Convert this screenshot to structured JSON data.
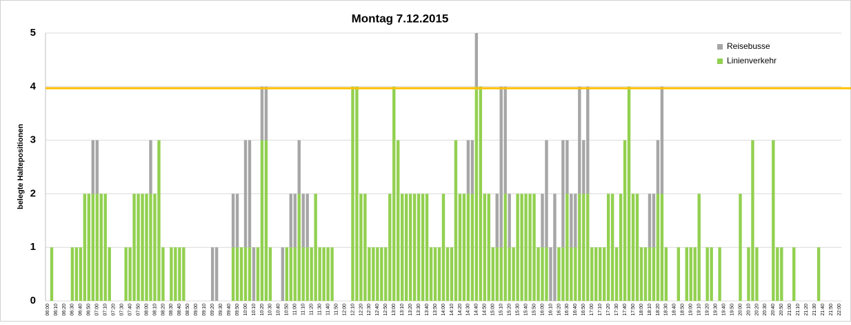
{
  "chart_data": {
    "type": "bar",
    "stacked": true,
    "title": "Montag 7.12.2015",
    "y_label": "belegte Haltepositionen",
    "categories": [
      "06:00",
      null,
      "06:10",
      null,
      "06:20",
      null,
      "06:30",
      null,
      "06:40",
      null,
      "06:50",
      null,
      "07:00",
      null,
      "07:10",
      null,
      "07:20",
      null,
      "07:30",
      null,
      "07:40",
      null,
      "07:50",
      null,
      "08:00",
      null,
      "08:10",
      null,
      "08:20",
      null,
      "08:30",
      null,
      "08:40",
      null,
      "08:50",
      null,
      "09:00",
      null,
      "09:10",
      null,
      "09:20",
      null,
      "09:30",
      null,
      "09:40",
      null,
      "09:50",
      null,
      "10:00",
      null,
      "10:10",
      null,
      "10:20",
      null,
      "10:30",
      null,
      "10:40",
      null,
      "10:50",
      null,
      "11:00",
      null,
      "11:10",
      null,
      "11:20",
      null,
      "11:30",
      null,
      "11:40",
      null,
      "11:50",
      null,
      "12:00",
      null,
      "12:10",
      null,
      "12:20",
      null,
      "12:30",
      null,
      "12:40",
      null,
      "12:50",
      null,
      "13:00",
      null,
      "13:10",
      null,
      "13:20",
      null,
      "13:30",
      null,
      "13:40",
      null,
      "13:50",
      null,
      "14:00",
      null,
      "14:10",
      null,
      "14:20",
      null,
      "14:30",
      null,
      "14:40",
      null,
      "14:50",
      null,
      "15:00",
      null,
      "15:10",
      null,
      "15:20",
      null,
      "15:30",
      null,
      "15:40",
      null,
      "15:50",
      null,
      "16:00",
      null,
      "16:10",
      null,
      "16:20",
      null,
      "16:30",
      null,
      "16:40",
      null,
      "16:50",
      null,
      "17:00",
      null,
      "17:10",
      null,
      "17:20",
      null,
      "17:30",
      null,
      "17:40",
      null,
      "17:50",
      null,
      "18:00",
      null,
      "18:10",
      null,
      "18:20",
      null,
      "18:30",
      null,
      "18:40",
      null,
      "18:50",
      null,
      "19:00",
      null,
      "19:10",
      null,
      "19:20",
      null,
      "19:30",
      null,
      "19:40",
      null,
      "19:50",
      null,
      "20:00",
      null,
      "20:10",
      null,
      "20:20",
      null,
      "20:30",
      null,
      "20:40",
      null,
      "20:50",
      null,
      "21:00",
      null,
      "21:10",
      null,
      "21:20",
      null,
      "21:30",
      null,
      "21:40",
      null,
      "21:50",
      null,
      "22:00"
    ],
    "series": [
      {
        "name": "Linienverkehr",
        "color": "#92d050",
        "values": [
          0,
          1,
          0,
          0,
          0,
          0,
          1,
          1,
          1,
          2,
          2,
          2,
          2,
          2,
          2,
          1,
          0,
          0,
          0,
          1,
          1,
          2,
          2,
          2,
          2,
          2,
          2,
          3,
          1,
          0,
          1,
          1,
          1,
          1,
          0,
          0,
          0,
          0,
          0,
          0,
          0,
          0,
          0,
          0,
          0,
          1,
          1,
          1,
          1,
          1,
          0,
          1,
          3,
          3,
          1,
          0,
          0,
          0,
          1,
          1,
          1,
          2,
          1,
          1,
          1,
          2,
          1,
          1,
          1,
          1,
          0,
          0,
          0,
          0,
          4,
          4,
          2,
          2,
          1,
          1,
          1,
          1,
          1,
          2,
          4,
          3,
          2,
          2,
          2,
          2,
          2,
          2,
          2,
          1,
          1,
          1,
          2,
          1,
          1,
          3,
          2,
          2,
          2,
          2,
          4,
          4,
          2,
          2,
          1,
          1,
          1,
          2,
          1,
          1,
          2,
          2,
          2,
          2,
          2,
          1,
          1,
          1,
          0,
          0,
          1,
          1,
          2,
          1,
          1,
          2,
          2,
          2,
          1,
          1,
          1,
          1,
          2,
          2,
          1,
          2,
          3,
          4,
          2,
          2,
          1,
          1,
          1,
          1,
          2,
          2,
          1,
          0,
          0,
          1,
          0,
          1,
          1,
          1,
          2,
          0,
          1,
          1,
          0,
          1,
          0,
          0,
          0,
          0,
          2,
          0,
          1,
          3,
          1,
          0,
          0,
          0,
          3,
          1,
          1,
          0,
          0,
          1,
          0,
          0,
          0,
          0,
          0,
          1,
          0,
          0,
          0,
          0,
          0
        ]
      },
      {
        "name": "Reisebusse",
        "color": "#a6a6a6",
        "values": [
          0,
          0,
          0,
          0,
          0,
          0,
          0,
          0,
          0,
          0,
          0,
          1,
          1,
          0,
          0,
          0,
          0,
          0,
          0,
          0,
          0,
          0,
          0,
          0,
          0,
          1,
          0,
          0,
          0,
          0,
          0,
          0,
          0,
          0,
          0,
          0,
          0,
          0,
          0,
          0,
          1,
          1,
          0,
          0,
          0,
          1,
          1,
          0,
          2,
          2,
          1,
          0,
          1,
          1,
          0,
          0,
          0,
          1,
          0,
          1,
          1,
          1,
          1,
          1,
          0,
          0,
          0,
          0,
          0,
          0,
          0,
          0,
          0,
          0,
          0,
          0,
          0,
          0,
          0,
          0,
          0,
          0,
          0,
          0,
          0,
          0,
          0,
          0,
          0,
          0,
          0,
          0,
          0,
          0,
          0,
          0,
          0,
          0,
          0,
          0,
          0,
          0,
          1,
          1,
          1,
          0,
          0,
          0,
          0,
          1,
          3,
          2,
          1,
          0,
          0,
          0,
          0,
          0,
          0,
          0,
          1,
          2,
          1,
          2,
          0,
          2,
          1,
          1,
          1,
          2,
          1,
          2,
          0,
          0,
          0,
          0,
          0,
          0,
          0,
          0,
          0,
          0,
          0,
          0,
          0,
          0,
          1,
          1,
          1,
          2,
          0,
          0,
          0,
          0,
          0,
          0,
          0,
          0,
          0,
          0,
          0,
          0,
          0,
          0,
          0,
          0,
          0,
          0,
          0,
          0,
          0,
          0,
          0,
          0,
          0,
          0,
          0,
          0,
          0,
          0,
          0,
          0,
          0,
          0,
          0,
          0,
          0,
          0,
          0,
          0,
          0,
          0,
          0
        ]
      }
    ],
    "reference_line": {
      "value": 3.97,
      "color": "#ffc000"
    },
    "ylim": [
      0,
      5
    ],
    "yticks": [
      0,
      1,
      2,
      3,
      4,
      5
    ],
    "grid": true,
    "legend": "top-right"
  }
}
